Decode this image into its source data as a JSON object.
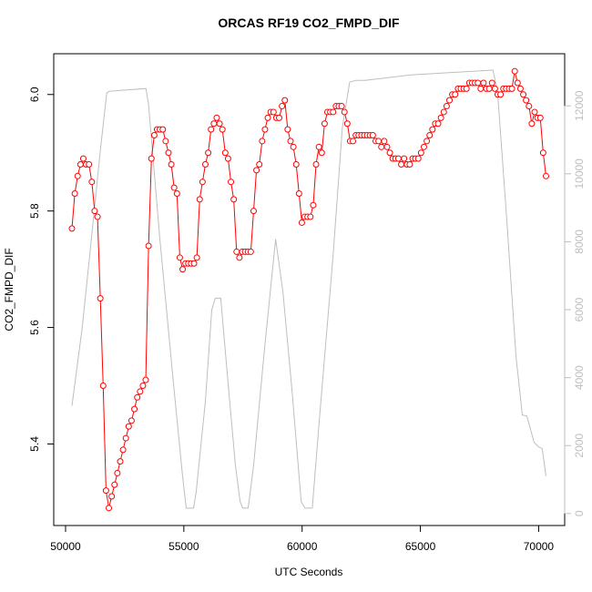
{
  "chart_data": {
    "type": "line",
    "title": "ORCAS RF19 CO2_FMPD_DIF",
    "x_label": "UTC Seconds",
    "y_label": "CO2_FMPD_DIF",
    "xlim": [
      49500,
      71100
    ],
    "ylim": [
      5.26,
      6.07
    ],
    "y2lim": [
      -353,
      13534
    ],
    "xticks": [
      50000,
      55000,
      60000,
      65000,
      70000
    ],
    "yticks": [
      5.4,
      5.6,
      5.8,
      {
        "value": 6,
        "label": "6.0"
      }
    ],
    "y2ticks": [
      0,
      2000,
      4000,
      6000,
      8000,
      10000,
      12000
    ],
    "y2_tick_color": "#bebebe",
    "series": [
      {
        "color": "#ff0000",
        "marker": "circle",
        "x": [
          50270,
          50390,
          50510,
          50630,
          50750,
          50870,
          50990,
          51110,
          51230,
          51350,
          51470,
          51590,
          51710,
          51830,
          51950,
          52070,
          52190,
          52310,
          52430,
          52550,
          52670,
          52790,
          52910,
          53030,
          53150,
          53270,
          53390,
          53510,
          53630,
          53750,
          53870,
          53990,
          54110,
          54230,
          54350,
          54470,
          54590,
          54710,
          54830,
          54950,
          55070,
          55190,
          55310,
          55430,
          55550,
          55670,
          55790,
          55910,
          56030,
          56150,
          56270,
          56390,
          56510,
          56630,
          56750,
          56870,
          56990,
          57110,
          57230,
          57350,
          57470,
          57590,
          57710,
          57830,
          57950,
          58070,
          58190,
          58310,
          58430,
          58550,
          58670,
          58790,
          58910,
          59030,
          59150,
          59270,
          59390,
          59510,
          59630,
          59750,
          59870,
          59990,
          60110,
          60230,
          60350,
          60470,
          60590,
          60710,
          60830,
          60950,
          61070,
          61190,
          61310,
          61430,
          61550,
          61670,
          61790,
          61910,
          62030,
          62150,
          62270,
          62390,
          62510,
          62630,
          62750,
          62870,
          62990,
          63110,
          63230,
          63350,
          63470,
          63590,
          63710,
          63830,
          63950,
          64070,
          64190,
          64310,
          64430,
          64550,
          64670,
          64790,
          64910,
          65030,
          65150,
          65270,
          65390,
          65510,
          65630,
          65750,
          65870,
          65990,
          66110,
          66230,
          66350,
          66470,
          66590,
          66710,
          66830,
          66950,
          67070,
          67190,
          67310,
          67430,
          67550,
          67670,
          67790,
          67910,
          68030,
          68150,
          68270,
          68390,
          68510,
          68630,
          68750,
          68870,
          68990,
          69110,
          69230,
          69350,
          69470,
          69590,
          69710,
          69830,
          69950,
          70070,
          70190,
          70310
        ],
        "values": [
          5.77,
          5.83,
          5.86,
          5.88,
          5.89,
          5.88,
          5.88,
          5.85,
          5.8,
          5.79,
          5.65,
          5.5,
          5.32,
          5.29,
          5.31,
          5.33,
          5.35,
          5.37,
          5.39,
          5.41,
          5.43,
          5.44,
          5.46,
          5.48,
          5.49,
          5.5,
          5.51,
          5.74,
          5.89,
          5.93,
          5.94,
          5.94,
          5.94,
          5.92,
          5.9,
          5.88,
          5.84,
          5.83,
          5.72,
          5.7,
          5.71,
          5.71,
          5.71,
          5.71,
          5.72,
          5.82,
          5.85,
          5.88,
          5.9,
          5.94,
          5.95,
          5.96,
          5.95,
          5.94,
          5.9,
          5.89,
          5.85,
          5.82,
          5.73,
          5.72,
          5.73,
          5.73,
          5.73,
          5.73,
          5.8,
          5.87,
          5.88,
          5.92,
          5.94,
          5.96,
          5.97,
          5.97,
          5.96,
          5.96,
          5.98,
          5.99,
          5.94,
          5.92,
          5.91,
          5.88,
          5.83,
          5.78,
          5.79,
          5.79,
          5.79,
          5.81,
          5.88,
          5.91,
          5.9,
          5.95,
          5.97,
          5.97,
          5.97,
          5.98,
          5.98,
          5.98,
          5.97,
          5.95,
          5.92,
          5.92,
          5.93,
          5.93,
          5.93,
          5.93,
          5.93,
          5.93,
          5.93,
          5.92,
          5.92,
          5.91,
          5.92,
          5.91,
          5.9,
          5.89,
          5.89,
          5.89,
          5.88,
          5.89,
          5.88,
          5.88,
          5.89,
          5.89,
          5.89,
          5.9,
          5.91,
          5.92,
          5.93,
          5.94,
          5.95,
          5.95,
          5.96,
          5.97,
          5.98,
          5.99,
          6.0,
          6.0,
          6.01,
          6.01,
          6.01,
          6.01,
          6.02,
          6.02,
          6.02,
          6.02,
          6.01,
          6.02,
          6.01,
          6.01,
          6.02,
          6.01,
          6.0,
          6.0,
          6.01,
          6.01,
          6.01,
          6.01,
          6.04,
          6.02,
          6.01,
          6.0,
          5.99,
          5.98,
          5.95,
          5.97,
          5.96,
          5.96,
          5.9,
          5.86
        ]
      },
      {
        "color": "#bebebe",
        "axis": "y2",
        "x": [
          50270,
          50700,
          51080,
          51470,
          51740,
          51850,
          53400,
          53510,
          53980,
          54560,
          54940,
          55100,
          55410,
          55520,
          55910,
          56180,
          56330,
          56560,
          56870,
          57180,
          57380,
          57490,
          57720,
          57950,
          58420,
          58880,
          59190,
          59580,
          59960,
          60120,
          60430,
          60730,
          61310,
          61700,
          62010,
          62280,
          62660,
          64600,
          66530,
          68070,
          68260,
          68650,
          69040,
          69310,
          69500,
          69810,
          70000,
          70150,
          70310
        ],
        "values": [
          3170,
          5450,
          8000,
          10690,
          12380,
          12430,
          12510,
          12030,
          8130,
          3840,
          1150,
          160,
          160,
          620,
          3300,
          5990,
          6340,
          6340,
          3840,
          1420,
          350,
          160,
          160,
          1420,
          4910,
          8080,
          6520,
          3570,
          350,
          160,
          160,
          2770,
          7600,
          11360,
          12700,
          12750,
          12750,
          12910,
          12990,
          13050,
          12430,
          8670,
          4640,
          2900,
          2870,
          2090,
          1960,
          1910,
          1100
        ]
      }
    ]
  }
}
